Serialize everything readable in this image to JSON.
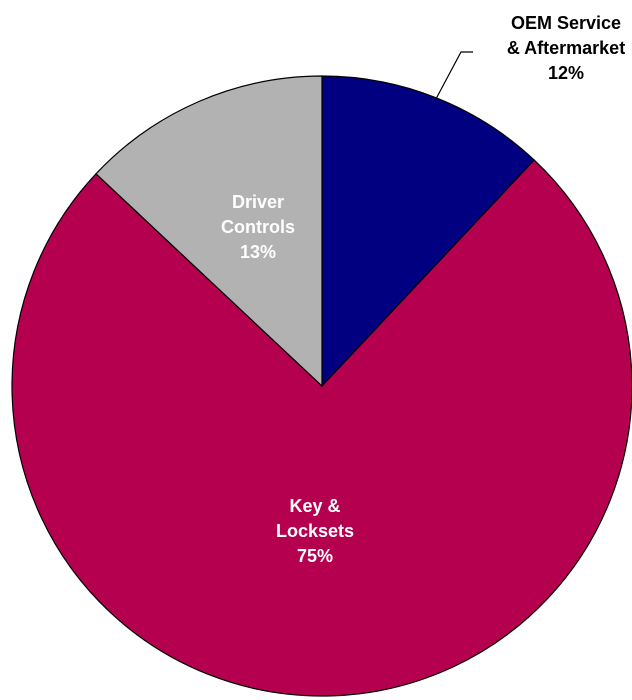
{
  "chart_data": {
    "type": "pie",
    "title": "",
    "start_angle_deg": 0,
    "direction": "clockwise",
    "slices": [
      {
        "name": "OEM Service & Aftermarket",
        "label_lines": [
          "OEM Service",
          "& Aftermarket"
        ],
        "value": 12,
        "value_label": "12%",
        "color": "#000080",
        "label_color": "#000000",
        "label_placement": "outside"
      },
      {
        "name": "Key & Locksets",
        "label_lines": [
          "Key &",
          "Locksets"
        ],
        "value": 75,
        "value_label": "75%",
        "color": "#B5004F",
        "label_color": "#FFFFFF",
        "label_placement": "inside"
      },
      {
        "name": "Driver Controls",
        "label_lines": [
          "Driver",
          "Controls"
        ],
        "value": 13,
        "value_label": "13%",
        "color": "#B2B2B2",
        "label_color": "#FFFFFF",
        "label_placement": "inside"
      }
    ]
  }
}
